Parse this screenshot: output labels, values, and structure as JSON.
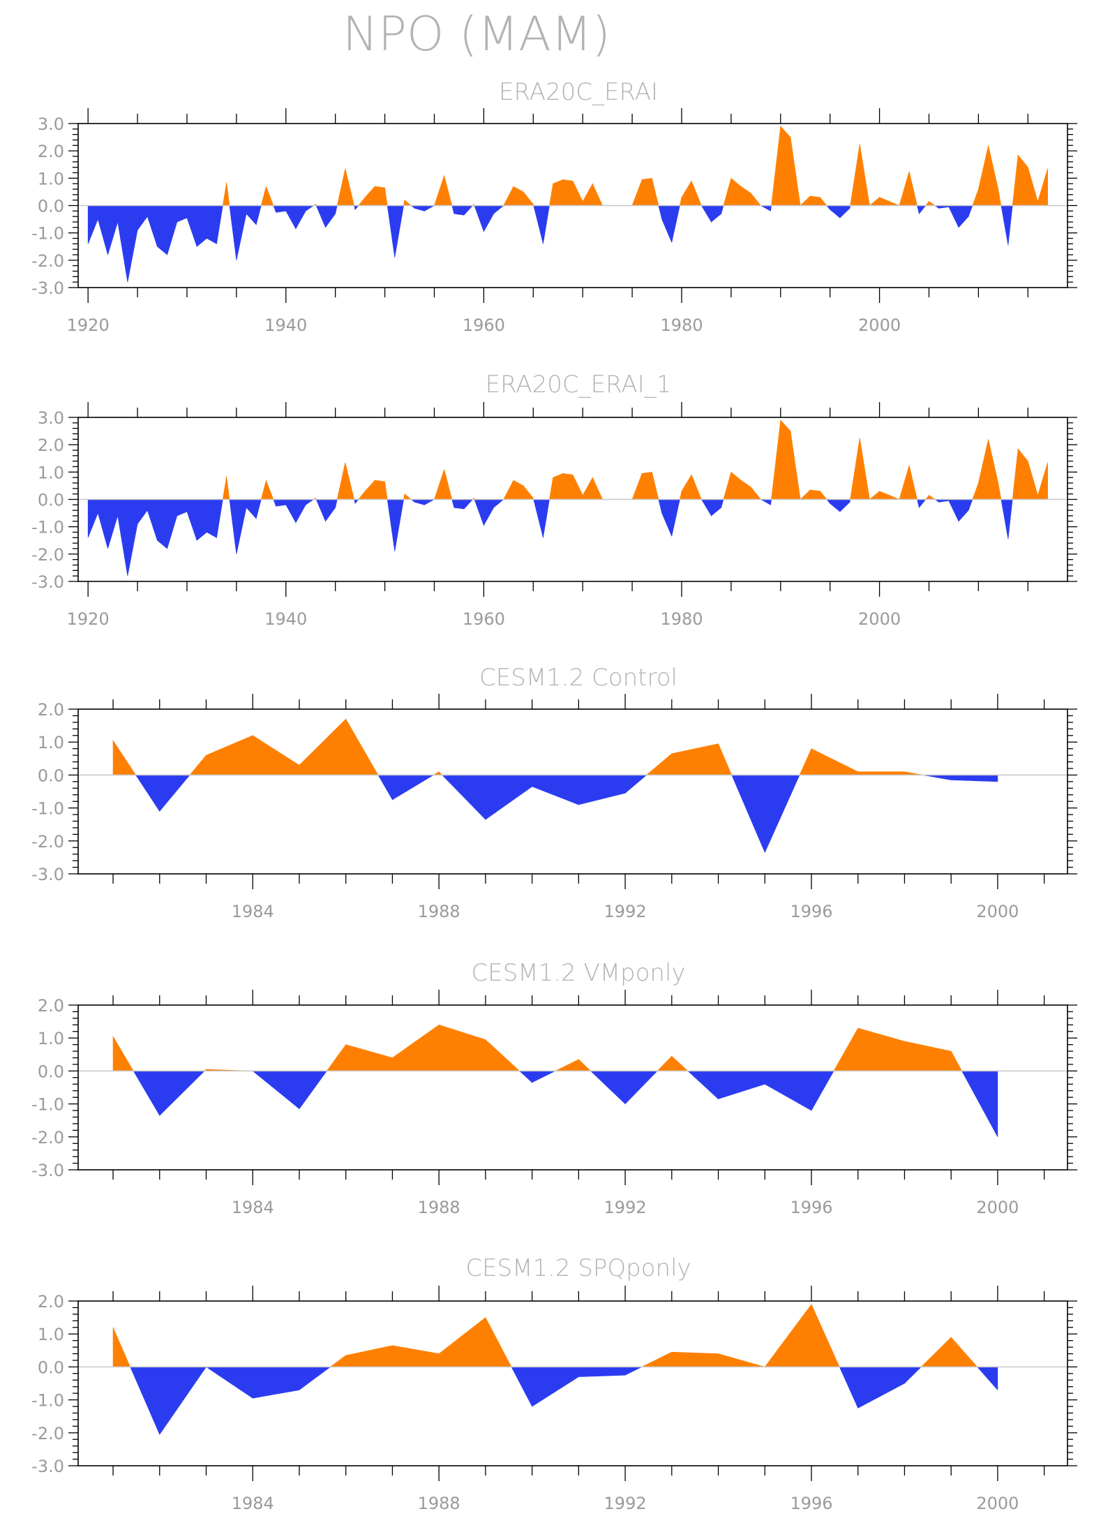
{
  "figure_title": "NPO (MAM)",
  "colors": {
    "positive": "#ff8000",
    "negative": "#2b3cf0",
    "text": "#9a9a9a",
    "zero_line": "#c8c8c8"
  },
  "chart_data": [
    {
      "type": "area",
      "title": "ERA20C_ERAI",
      "xlabel": "",
      "ylabel": "",
      "xlim": [
        1919,
        2019
      ],
      "ylim": [
        -3.0,
        3.0
      ],
      "yticks": [
        "3.0",
        "2.0",
        "1.0",
        "0.0",
        "-1.0",
        "-2.0",
        "-3.0"
      ],
      "yticks_values": [
        3,
        2,
        1,
        0,
        -1,
        -2,
        -3
      ],
      "xticks": [
        "1920",
        "1940",
        "1960",
        "1980",
        "2000"
      ],
      "xticks_values": [
        1920,
        1940,
        1960,
        1980,
        2000
      ],
      "grid": false,
      "x": [
        1920,
        1921,
        1922,
        1923,
        1924,
        1925,
        1926,
        1927,
        1928,
        1929,
        1930,
        1931,
        1932,
        1933,
        1934,
        1935,
        1936,
        1937,
        1938,
        1939,
        1940,
        1941,
        1942,
        1943,
        1944,
        1945,
        1946,
        1947,
        1948,
        1949,
        1950,
        1951,
        1952,
        1953,
        1954,
        1955,
        1956,
        1957,
        1958,
        1959,
        1960,
        1961,
        1962,
        1963,
        1964,
        1965,
        1966,
        1967,
        1968,
        1969,
        1970,
        1971,
        1972,
        1973,
        1974,
        1975,
        1976,
        1977,
        1978,
        1979,
        1980,
        1981,
        1982,
        1983,
        1984,
        1985,
        1986,
        1987,
        1988,
        1989,
        1990,
        1991,
        1992,
        1993,
        1994,
        1995,
        1996,
        1997,
        1998,
        1999,
        2000,
        2001,
        2002,
        2003,
        2004,
        2005,
        2006,
        2007,
        2008,
        2009,
        2010,
        2011,
        2012,
        2013,
        2014,
        2015,
        2016,
        2017
      ],
      "values": [
        -1.4,
        -0.5,
        -1.8,
        -0.6,
        -2.8,
        -0.9,
        -0.4,
        -1.5,
        -1.8,
        -0.6,
        -0.45,
        -1.5,
        -1.2,
        -1.4,
        0.85,
        -2.0,
        -0.3,
        -0.7,
        0.7,
        -0.25,
        -0.2,
        -0.85,
        -0.2,
        0.05,
        -0.8,
        -0.3,
        1.35,
        -0.15,
        0.3,
        0.7,
        0.65,
        -1.9,
        0.2,
        -0.1,
        -0.2,
        0.0,
        1.1,
        -0.3,
        -0.35,
        0.05,
        -0.95,
        -0.3,
        0.0,
        0.7,
        0.5,
        0.05,
        -1.4,
        0.8,
        0.95,
        0.9,
        0.15,
        0.8,
        0.0,
        0.0,
        0.0,
        0.0,
        0.95,
        1.0,
        -0.5,
        -1.35,
        0.3,
        0.9,
        0.0,
        -0.6,
        -0.3,
        1.0,
        0.7,
        0.45,
        0.0,
        -0.2,
        2.9,
        2.5,
        0.0,
        0.35,
        0.3,
        -0.15,
        -0.45,
        -0.1,
        2.25,
        0.0,
        0.3,
        0.15,
        0.0,
        1.25,
        -0.3,
        0.15,
        -0.1,
        -0.05,
        -0.8,
        -0.4,
        0.6,
        2.2,
        0.6,
        -1.45,
        1.85,
        1.4,
        0.15,
        1.35
      ]
    },
    {
      "type": "area",
      "title": "ERA20C_ERAI_1",
      "xlabel": "",
      "ylabel": "",
      "xlim": [
        1919,
        2019
      ],
      "ylim": [
        -3.0,
        3.0
      ],
      "yticks": [
        "3.0",
        "2.0",
        "1.0",
        "0.0",
        "-1.0",
        "-2.0",
        "-3.0"
      ],
      "yticks_values": [
        3,
        2,
        1,
        0,
        -1,
        -2,
        -3
      ],
      "xticks": [
        "1920",
        "1940",
        "1960",
        "1980",
        "2000"
      ],
      "xticks_values": [
        1920,
        1940,
        1960,
        1980,
        2000
      ],
      "grid": false,
      "x": [
        1920,
        1921,
        1922,
        1923,
        1924,
        1925,
        1926,
        1927,
        1928,
        1929,
        1930,
        1931,
        1932,
        1933,
        1934,
        1935,
        1936,
        1937,
        1938,
        1939,
        1940,
        1941,
        1942,
        1943,
        1944,
        1945,
        1946,
        1947,
        1948,
        1949,
        1950,
        1951,
        1952,
        1953,
        1954,
        1955,
        1956,
        1957,
        1958,
        1959,
        1960,
        1961,
        1962,
        1963,
        1964,
        1965,
        1966,
        1967,
        1968,
        1969,
        1970,
        1971,
        1972,
        1973,
        1974,
        1975,
        1976,
        1977,
        1978,
        1979,
        1980,
        1981,
        1982,
        1983,
        1984,
        1985,
        1986,
        1987,
        1988,
        1989,
        1990,
        1991,
        1992,
        1993,
        1994,
        1995,
        1996,
        1997,
        1998,
        1999,
        2000,
        2001,
        2002,
        2003,
        2004,
        2005,
        2006,
        2007,
        2008,
        2009,
        2010,
        2011,
        2012,
        2013,
        2014,
        2015,
        2016,
        2017
      ],
      "values": [
        -1.4,
        -0.5,
        -1.8,
        -0.6,
        -2.8,
        -0.9,
        -0.4,
        -1.5,
        -1.8,
        -0.6,
        -0.45,
        -1.5,
        -1.2,
        -1.4,
        0.85,
        -2.0,
        -0.3,
        -0.7,
        0.7,
        -0.25,
        -0.2,
        -0.85,
        -0.2,
        0.05,
        -0.8,
        -0.3,
        1.35,
        -0.15,
        0.3,
        0.7,
        0.65,
        -1.9,
        0.2,
        -0.1,
        -0.2,
        0.0,
        1.1,
        -0.3,
        -0.35,
        0.05,
        -0.95,
        -0.3,
        0.0,
        0.7,
        0.5,
        0.05,
        -1.4,
        0.8,
        0.95,
        0.9,
        0.15,
        0.8,
        0.0,
        0.0,
        0.0,
        0.0,
        0.95,
        1.0,
        -0.5,
        -1.35,
        0.3,
        0.9,
        0.0,
        -0.6,
        -0.3,
        1.0,
        0.7,
        0.45,
        0.0,
        -0.2,
        2.9,
        2.5,
        0.0,
        0.35,
        0.3,
        -0.15,
        -0.45,
        -0.1,
        2.25,
        0.0,
        0.3,
        0.15,
        0.0,
        1.25,
        -0.3,
        0.15,
        -0.1,
        -0.05,
        -0.8,
        -0.4,
        0.6,
        2.2,
        0.6,
        -1.45,
        1.85,
        1.4,
        0.15,
        1.35
      ]
    },
    {
      "type": "area",
      "title": "CESM1.2 Control",
      "xlabel": "",
      "ylabel": "",
      "xlim": [
        1980.25,
        2001.5
      ],
      "ylim": [
        -3.0,
        2.0
      ],
      "yticks": [
        "2.0",
        "1.0",
        "0.0",
        "-1.0",
        "-2.0",
        "-3.0"
      ],
      "yticks_values": [
        2,
        1,
        0,
        -1,
        -2,
        -3
      ],
      "xticks": [
        "1984",
        "1988",
        "1992",
        "1996",
        "2000"
      ],
      "xticks_values": [
        1984,
        1988,
        1992,
        1996,
        2000
      ],
      "grid": false,
      "x": [
        1981,
        1982,
        1983,
        1984,
        1985,
        1986,
        1987,
        1988,
        1989,
        1990,
        1991,
        1992,
        1993,
        1994,
        1995,
        1996,
        1997,
        1998,
        1999,
        2000
      ],
      "values": [
        1.05,
        -1.1,
        0.6,
        1.2,
        0.3,
        1.7,
        -0.75,
        0.1,
        -1.35,
        -0.35,
        -0.9,
        -0.55,
        0.65,
        0.95,
        -2.35,
        0.8,
        0.1,
        0.1,
        -0.15,
        -0.2
      ]
    },
    {
      "type": "area",
      "title": "CESM1.2 VMponly",
      "xlabel": "",
      "ylabel": "",
      "xlim": [
        1980.25,
        2001.5
      ],
      "ylim": [
        -3.0,
        2.0
      ],
      "yticks": [
        "2.0",
        "1.0",
        "0.0",
        "-1.0",
        "-2.0",
        "-3.0"
      ],
      "yticks_values": [
        2,
        1,
        0,
        -1,
        -2,
        -3
      ],
      "xticks": [
        "1984",
        "1988",
        "1992",
        "1996",
        "2000"
      ],
      "xticks_values": [
        1984,
        1988,
        1992,
        1996,
        2000
      ],
      "grid": false,
      "x": [
        1981,
        1982,
        1983,
        1984,
        1985,
        1986,
        1987,
        1988,
        1989,
        1990,
        1991,
        1992,
        1993,
        1994,
        1995,
        1996,
        1997,
        1998,
        1999,
        2000
      ],
      "values": [
        1.05,
        -1.35,
        0.05,
        0.0,
        -1.15,
        0.8,
        0.4,
        1.4,
        0.95,
        -0.35,
        0.35,
        -1.0,
        0.45,
        -0.85,
        -0.4,
        -1.2,
        1.3,
        0.9,
        0.6,
        -2.0
      ]
    },
    {
      "type": "area",
      "title": "CESM1.2 SPQponly",
      "xlabel": "",
      "ylabel": "",
      "xlim": [
        1980.25,
        2001.5
      ],
      "ylim": [
        -3.0,
        2.0
      ],
      "yticks": [
        "2.0",
        "1.0",
        "0.0",
        "-1.0",
        "-2.0",
        "-3.0"
      ],
      "yticks_values": [
        2,
        1,
        0,
        -1,
        -2,
        -3
      ],
      "xticks": [
        "1984",
        "1988",
        "1992",
        "1996",
        "2000"
      ],
      "xticks_values": [
        1984,
        1988,
        1992,
        1996,
        2000
      ],
      "grid": false,
      "x": [
        1981,
        1982,
        1983,
        1984,
        1985,
        1986,
        1987,
        1988,
        1989,
        1990,
        1991,
        1992,
        1993,
        1994,
        1995,
        1996,
        1997,
        1998,
        1999,
        2000
      ],
      "values": [
        1.2,
        -2.05,
        0.0,
        -0.95,
        -0.7,
        0.35,
        0.65,
        0.4,
        1.5,
        -1.2,
        -0.3,
        -0.25,
        0.45,
        0.4,
        0.0,
        1.9,
        -1.25,
        -0.5,
        0.9,
        -0.7
      ]
    }
  ]
}
